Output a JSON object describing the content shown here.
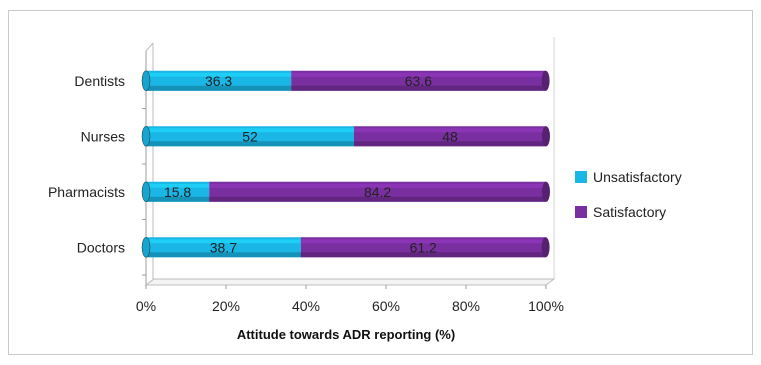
{
  "chart_data": {
    "type": "bar",
    "orientation": "horizontal",
    "stacked": true,
    "percent_stacked": true,
    "categories": [
      "Doctors",
      "Pharmacists",
      "Nurses",
      "Dentists"
    ],
    "series": [
      {
        "name": "Unsatisfactory",
        "values": [
          38.7,
          15.8,
          52,
          36.3
        ],
        "color": "#1ab6e6"
      },
      {
        "name": "Satisfactory",
        "values": [
          61.2,
          84.2,
          48,
          63.6
        ],
        "color": "#7a2fa0"
      }
    ],
    "data_labels": {
      "Unsatisfactory": [
        "38.7",
        "15.8",
        "52",
        "36.3"
      ],
      "Satisfactory": [
        "61.2",
        "84.2",
        "48",
        "63.6"
      ]
    },
    "xlabel": "Attitude towards ADR reporting (%)",
    "ylabel": "",
    "xlim": [
      0,
      100
    ],
    "x_ticks": [
      "0%",
      "20%",
      "40%",
      "60%",
      "80%",
      "100%"
    ],
    "legend_position": "right",
    "grid": false,
    "three_d": true
  }
}
